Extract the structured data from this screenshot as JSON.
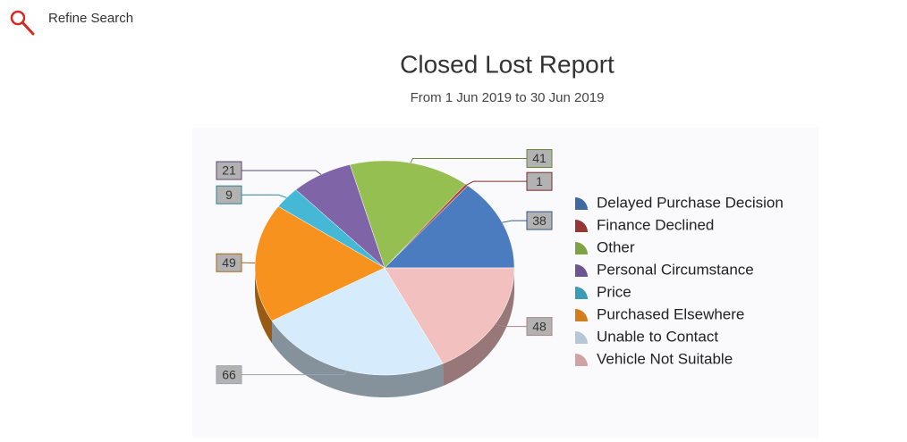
{
  "toolbar": {
    "refine_search": "Refine Search"
  },
  "chart_data": {
    "type": "pie",
    "title": "Closed Lost Report",
    "subtitle": "From 1 Jun 2019 to 30 Jun 2019",
    "categories": [
      "Delayed Purchase Decision",
      "Finance Declined",
      "Other",
      "Personal Circumstance",
      "Price",
      "Purchased Elsewhere",
      "Unable to Contact",
      "Vehicle Not Suitable"
    ],
    "values": [
      38,
      1,
      41,
      21,
      9,
      49,
      66,
      48
    ],
    "colors": [
      "#4a7cbf",
      "#b0413e",
      "#95bf50",
      "#8064a8",
      "#45b8d6",
      "#f7921e",
      "#d6ebfb",
      "#f3c0c0"
    ],
    "legend": "right"
  }
}
